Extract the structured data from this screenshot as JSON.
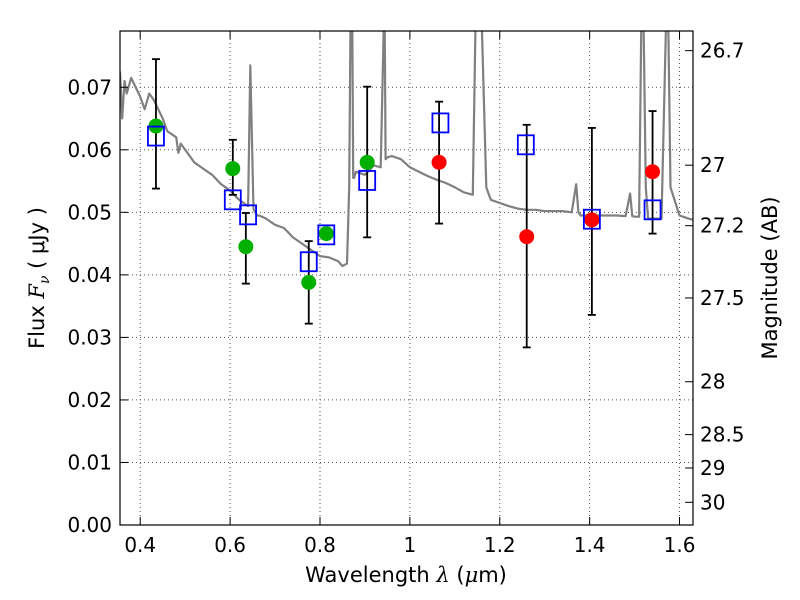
{
  "chart_data": {
    "type": "scatter",
    "title": "",
    "xlabel": {
      "prefix": "Wavelength  ",
      "symbol": "λ",
      "unit_open": " (",
      "unit_mu": "μ",
      "unit_rest": "m)"
    },
    "ylabel": {
      "prefix": "Flux  ",
      "symbol": "F",
      "subscript": "ν",
      "unit": "  ( μJy )"
    },
    "y2label": "Magnitude (AB)",
    "xlim": [
      0.355,
      1.63
    ],
    "ylim": [
      0.0,
      0.079
    ],
    "grid": true,
    "x_ticks": [
      0.4,
      0.6,
      0.8,
      1.0,
      1.2,
      1.4,
      1.6
    ],
    "x_tick_labels": [
      "0.4",
      "0.6",
      "0.8",
      "1",
      "1.2",
      "1.4",
      "1.6"
    ],
    "y_ticks": [
      0.0,
      0.01,
      0.02,
      0.03,
      0.04,
      0.05,
      0.06,
      0.07
    ],
    "y_tick_labels": [
      "0.00",
      "0.01",
      "0.02",
      "0.03",
      "0.04",
      "0.05",
      "0.06",
      "0.07"
    ],
    "y2_ticks": [
      26.7,
      27,
      27.2,
      27.5,
      28,
      28.5,
      29,
      30
    ],
    "y2_tick_labels": [
      "26.7",
      "27",
      "27.2",
      "27.5",
      "28",
      "28.5",
      "29",
      "30"
    ],
    "colors": {
      "model": "#808080",
      "green": "#00b000",
      "red": "#ff0000",
      "model_box": "#0000ff",
      "errorbar": "#000000",
      "grid": "#555555"
    },
    "series": [
      {
        "kind": "observed_optical",
        "marker": "filled-circle",
        "color": "green",
        "x": [
          0.435,
          0.606,
          0.635,
          0.775,
          0.814,
          0.905
        ],
        "y": [
          0.0638,
          0.057,
          0.0445,
          0.0388,
          0.0466,
          0.058
        ]
      },
      {
        "kind": "observed_ir",
        "marker": "filled-circle",
        "color": "red",
        "x": [
          1.065,
          1.26,
          1.405,
          1.54
        ],
        "y": [
          0.058,
          0.0461,
          0.0488,
          0.0565
        ]
      },
      {
        "kind": "model_photometry",
        "marker": "open-square",
        "color": "model_box",
        "x": [
          0.435,
          0.606,
          0.64,
          0.775,
          0.814,
          0.905,
          1.068,
          1.258,
          1.405,
          1.54
        ],
        "y": [
          0.0622,
          0.052,
          0.0496,
          0.0421,
          0.0464,
          0.0551,
          0.0643,
          0.0608,
          0.0489,
          0.0504
        ]
      }
    ],
    "error_bars": [
      {
        "x": 0.435,
        "low": 0.0538,
        "high": 0.0745
      },
      {
        "x": 0.606,
        "low": 0.0528,
        "high": 0.0616
      },
      {
        "x": 0.635,
        "low": 0.0386,
        "high": 0.0499
      },
      {
        "x": 0.775,
        "low": 0.0322,
        "high": 0.0454
      },
      {
        "x": 0.905,
        "low": 0.046,
        "high": 0.0701
      },
      {
        "x": 1.065,
        "low": 0.0482,
        "high": 0.0677
      },
      {
        "x": 1.26,
        "low": 0.0284,
        "high": 0.064
      },
      {
        "x": 1.405,
        "low": 0.0336,
        "high": 0.0635
      },
      {
        "x": 1.54,
        "low": 0.0466,
        "high": 0.0662
      }
    ],
    "model_spectrum": {
      "x": [
        0.355,
        0.36,
        0.365,
        0.37,
        0.38,
        0.39,
        0.4,
        0.41,
        0.42,
        0.43,
        0.44,
        0.45,
        0.46,
        0.47,
        0.48,
        0.485,
        0.49,
        0.5,
        0.52,
        0.54,
        0.56,
        0.58,
        0.6,
        0.62,
        0.64,
        0.645,
        0.652,
        0.656,
        0.66,
        0.665,
        0.68,
        0.7,
        0.72,
        0.74,
        0.76,
        0.78,
        0.8,
        0.82,
        0.84,
        0.85,
        0.86,
        0.865,
        0.868,
        0.872,
        0.874,
        0.876,
        0.88,
        0.9,
        0.92,
        0.935,
        0.942,
        0.944,
        0.946,
        0.95,
        0.96,
        0.98,
        1.0,
        1.02,
        1.04,
        1.06,
        1.08,
        1.1,
        1.12,
        1.14,
        1.146,
        1.15,
        1.16,
        1.17,
        1.175,
        1.18,
        1.2,
        1.22,
        1.24,
        1.26,
        1.28,
        1.3,
        1.32,
        1.34,
        1.36,
        1.37,
        1.375,
        1.38,
        1.4,
        1.42,
        1.44,
        1.46,
        1.48,
        1.49,
        1.495,
        1.5,
        1.51,
        1.515,
        1.52,
        1.525,
        1.53,
        1.56,
        1.57,
        1.575,
        1.58,
        1.6,
        1.62,
        1.63
      ],
      "y": [
        0.0725,
        0.065,
        0.071,
        0.069,
        0.0715,
        0.07,
        0.0685,
        0.0665,
        0.069,
        0.068,
        0.0665,
        0.065,
        0.063,
        0.0625,
        0.062,
        0.0595,
        0.061,
        0.06,
        0.058,
        0.057,
        0.056,
        0.0545,
        0.0535,
        0.052,
        0.051,
        0.0735,
        0.0505,
        0.05,
        0.0495,
        0.0495,
        0.049,
        0.048,
        0.0475,
        0.046,
        0.045,
        0.044,
        0.043,
        0.0428,
        0.0422,
        0.0414,
        0.0418,
        0.054,
        0.08,
        0.08,
        0.0555,
        0.0555,
        0.0565,
        0.056,
        0.0575,
        0.0572,
        0.08,
        0.08,
        0.0585,
        0.0588,
        0.059,
        0.0585,
        0.0572,
        0.0565,
        0.0558,
        0.0552,
        0.0547,
        0.054,
        0.0532,
        0.0528,
        0.08,
        0.08,
        0.08,
        0.054,
        0.053,
        0.052,
        0.0515,
        0.051,
        0.0506,
        0.0504,
        0.0504,
        0.0502,
        0.0502,
        0.0502,
        0.05,
        0.0545,
        0.05,
        0.0495,
        0.0495,
        0.0495,
        0.0495,
        0.0495,
        0.0494,
        0.053,
        0.0494,
        0.0493,
        0.0493,
        0.08,
        0.08,
        0.054,
        0.049,
        0.049,
        0.08,
        0.08,
        0.054,
        0.0495,
        0.049,
        0.0488
      ]
    }
  }
}
